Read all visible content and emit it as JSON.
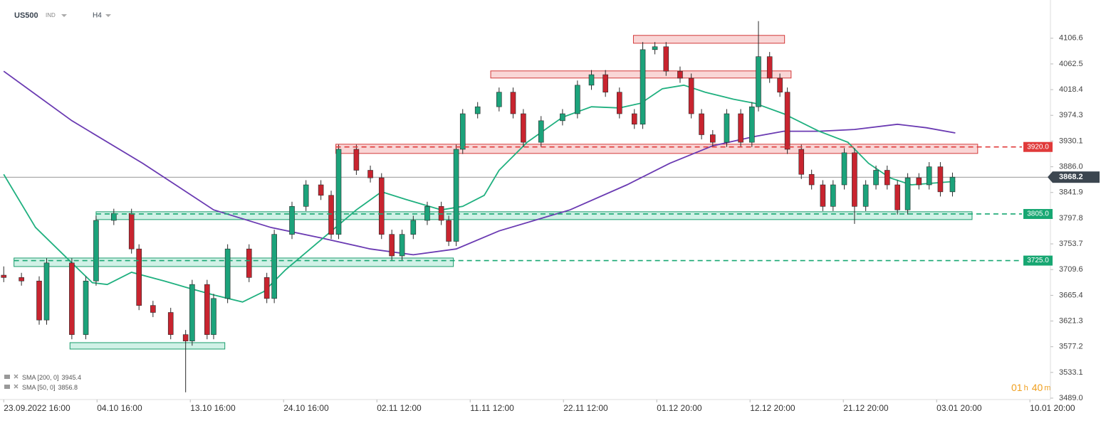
{
  "chart_data": {
    "type": "candlestick",
    "symbol": "US500",
    "market": "IND",
    "timeframe": "H4",
    "up_color": "#1ca37b",
    "down_color": "#c8242f",
    "x": [
      0,
      0.19,
      0.38,
      0.46,
      0.73,
      0.88,
      0.99,
      1.18,
      1.37,
      1.45,
      1.6,
      1.79,
      1.95,
      2.02,
      2.18,
      2.25,
      2.4,
      2.63,
      2.82,
      2.9,
      3.09,
      3.24,
      3.4,
      3.51,
      3.59,
      3.78,
      3.93,
      4.05,
      4.16,
      4.27,
      4.39,
      4.54,
      4.69,
      4.77,
      4.85,
      4.92,
      5.08,
      5.31,
      5.46,
      5.57,
      5.76,
      5.99,
      6.15,
      6.3,
      6.45,
      6.6,
      6.76,
      6.85,
      6.98,
      7.1,
      7.25,
      7.37,
      7.48,
      7.6,
      7.75,
      7.9,
      8.02,
      8.09,
      8.21,
      8.32,
      8.4,
      8.55,
      8.66,
      8.78,
      8.89,
      9.01,
      9.12,
      9.24,
      9.35,
      9.47,
      9.58,
      9.69,
      9.81,
      9.92,
      10.04,
      10.17
    ],
    "open": [
      3700,
      3696,
      3690,
      3623,
      3721,
      3598,
      3690,
      3794,
      3806,
      3745,
      3648,
      3636,
      3598,
      3587,
      3684,
      3598,
      3660,
      3745,
      3696,
      3660,
      3770,
      3818,
      3855,
      3837,
      3770,
      3916,
      3880,
      3867,
      3770,
      3733,
      3770,
      3794,
      3818,
      3794,
      3758,
      3916,
      3977,
      3989,
      4014,
      3977,
      3928,
      3965,
      3977,
      4026,
      4044,
      4014,
      3977,
      3959,
      4087,
      4092,
      4050,
      4038,
      3977,
      3941,
      3928,
      3977,
      3928,
      3989,
      4075,
      4038,
      4014,
      3916,
      3873,
      3855,
      3818,
      3855,
      3910,
      3818,
      3855,
      3880,
      3855,
      3812,
      3867,
      3855,
      3886,
      3843
    ],
    "high": [
      3715,
      3704,
      3698,
      3729,
      3729,
      3698,
      3802,
      3814,
      3814,
      3753,
      3656,
      3644,
      3606,
      3692,
      3692,
      3668,
      3753,
      3753,
      3704,
      3778,
      3826,
      3863,
      3863,
      3845,
      3924,
      3924,
      3888,
      3875,
      3778,
      3778,
      3802,
      3826,
      3826,
      3802,
      3924,
      3985,
      3997,
      4022,
      4022,
      3985,
      3973,
      3985,
      4034,
      4052,
      4052,
      4022,
      3985,
      4100,
      4100,
      4100,
      4058,
      4046,
      3985,
      3949,
      3985,
      3985,
      3997,
      4136,
      4083,
      4046,
      4022,
      3924,
      3881,
      3863,
      3863,
      3918,
      3918,
      3863,
      3888,
      3888,
      3863,
      3875,
      3875,
      3894,
      3894,
      3876
    ],
    "low": [
      3688,
      3682,
      3615,
      3615,
      3590,
      3590,
      3682,
      3786,
      3737,
      3640,
      3628,
      3590,
      3499,
      3579,
      3590,
      3590,
      3652,
      3688,
      3652,
      3652,
      3762,
      3810,
      3829,
      3762,
      3762,
      3872,
      3859,
      3762,
      3725,
      3725,
      3762,
      3786,
      3786,
      3750,
      3750,
      3908,
      3969,
      3981,
      3969,
      3920,
      3920,
      3957,
      3969,
      4018,
      4006,
      3969,
      3951,
      3951,
      4079,
      4042,
      4030,
      3969,
      3933,
      3920,
      3920,
      3920,
      3920,
      3981,
      4030,
      4006,
      3908,
      3865,
      3847,
      3810,
      3810,
      3847,
      3788,
      3810,
      3847,
      3847,
      3804,
      3804,
      3847,
      3847,
      3835,
      3835
    ],
    "close": [
      3696,
      3690,
      3623,
      3721,
      3598,
      3690,
      3794,
      3806,
      3745,
      3648,
      3636,
      3598,
      3587,
      3684,
      3598,
      3660,
      3745,
      3696,
      3660,
      3770,
      3818,
      3855,
      3837,
      3770,
      3916,
      3880,
      3867,
      3770,
      3733,
      3770,
      3794,
      3818,
      3794,
      3758,
      3916,
      3977,
      3989,
      4014,
      3977,
      3928,
      3965,
      3977,
      4026,
      4044,
      4014,
      3977,
      3959,
      4087,
      4092,
      4050,
      4038,
      3977,
      3941,
      3928,
      3977,
      3928,
      3989,
      4075,
      4038,
      4014,
      3916,
      3873,
      3855,
      3818,
      3855,
      3910,
      3818,
      3855,
      3880,
      3855,
      3812,
      3867,
      3855,
      3886,
      3843,
      3868.2
    ],
    "series": [
      {
        "name": "SMA [200, 0]",
        "last": 3945.4,
        "color": "#6a3ab2",
        "x": [
          0,
          0.73,
          1.49,
          2.25,
          2.86,
          3.4,
          3.93,
          4.39,
          4.85,
          5.31,
          6.07,
          6.68,
          7.14,
          7.6,
          8.05,
          8.36,
          8.74,
          9.12,
          9.58,
          9.89,
          10.2
        ],
        "values": [
          4050,
          3965,
          3892,
          3812,
          3782,
          3764,
          3745,
          3735,
          3745,
          3776,
          3812,
          3855,
          3892,
          3922,
          3938,
          3947,
          3947,
          3950,
          3959,
          3953,
          3944
        ]
      },
      {
        "name": "SMA [50, 0]",
        "last": 3856.8,
        "color": "#1fb07f",
        "x": [
          0,
          0.34,
          0.73,
          0.95,
          1.11,
          1.37,
          1.72,
          1.98,
          2.25,
          2.56,
          2.79,
          3.02,
          3.47,
          3.78,
          4.05,
          4.31,
          4.69,
          4.92,
          5.15,
          5.31,
          5.61,
          5.99,
          6.3,
          6.6,
          6.83,
          7.06,
          7.29,
          7.52,
          7.82,
          8.05,
          8.36,
          8.74,
          9.05,
          9.27,
          9.5,
          9.73,
          10.2
        ],
        "values": [
          3873,
          3782,
          3721,
          3687,
          3684,
          3705,
          3690,
          3678,
          3666,
          3654,
          3672,
          3709,
          3770,
          3812,
          3843,
          3830,
          3812,
          3818,
          3837,
          3880,
          3928,
          3971,
          3989,
          3987,
          3995,
          4020,
          4026,
          4014,
          4002,
          3995,
          3977,
          3947,
          3928,
          3892,
          3867,
          3855,
          3861
        ]
      }
    ],
    "zones": [
      {
        "x": [
          6.75,
          8.37
        ],
        "y": [
          4098,
          4111.5
        ],
        "fill": "rgba(232,90,90,0.25)",
        "stroke": "#d33a3a"
      },
      {
        "x": [
          5.22,
          8.44
        ],
        "y": [
          4038.3,
          4050.5
        ],
        "fill": "rgba(232,90,90,0.25)",
        "stroke": "#d33a3a"
      },
      {
        "x": [
          3.56,
          10.44
        ],
        "y": [
          3908.9,
          3924.7
        ],
        "fill": "rgba(232,90,90,0.25)",
        "stroke": "#d33a3a"
      },
      {
        "x": [
          0.99,
          10.38
        ],
        "y": [
          3795.4,
          3808.8
        ],
        "fill": "rgba(40,190,140,0.22)",
        "stroke": "#1a9c6c"
      },
      {
        "x": [
          0.11,
          4.82
        ],
        "y": [
          3714.8,
          3729.4
        ],
        "fill": "rgba(40,190,140,0.22)",
        "stroke": "#1a9c6c"
      },
      {
        "x": [
          0.71,
          2.37
        ],
        "y": [
          3573.2,
          3584.2
        ],
        "fill": "rgba(40,190,140,0.22)",
        "stroke": "#1a9c6c"
      }
    ],
    "levels": [
      {
        "value": 3920,
        "label": "3920.0",
        "color": "#e03a3a"
      },
      {
        "value": 3805,
        "label": "3805.0",
        "color": "#17a772"
      },
      {
        "value": 3725,
        "label": "3725.0",
        "color": "#17a772"
      }
    ],
    "last_price": 3868.2,
    "timer": {
      "hours": "01",
      "hours_unit": "h",
      "minutes": "40",
      "minutes_unit": "m"
    },
    "xlim": [
      -0.04,
      11.22
    ],
    "xticks": [
      {
        "value": 0,
        "label": "23.09.2022 16:00"
      },
      {
        "value": 1,
        "label": "04.10 16:00"
      },
      {
        "value": 2,
        "label": "13.10 16:00"
      },
      {
        "value": 3,
        "label": "24.10 16:00"
      },
      {
        "value": 4,
        "label": "02.11 12:00"
      },
      {
        "value": 5,
        "label": "11.11 12:00"
      },
      {
        "value": 6,
        "label": "22.11 12:00"
      },
      {
        "value": 7,
        "label": "01.12 20:00"
      },
      {
        "value": 8,
        "label": "12.12 20:00"
      },
      {
        "value": 9,
        "label": "21.12 20:00"
      },
      {
        "value": 10,
        "label": "03.01 20:00"
      },
      {
        "value": 11,
        "label": "10.01 20:00"
      }
    ],
    "ylim": [
      3489,
      4160
    ],
    "yticks": [
      {
        "value": 3489,
        "label": "3489.0"
      },
      3533.1,
      3577.2,
      3621.3,
      3665.4,
      3709.6,
      3753.7,
      3797.8,
      3841.9,
      {
        "value": 3886,
        "label": "3886.0"
      },
      3930.1,
      3974.3,
      4018.4,
      4062.5,
      4106.6
    ]
  }
}
